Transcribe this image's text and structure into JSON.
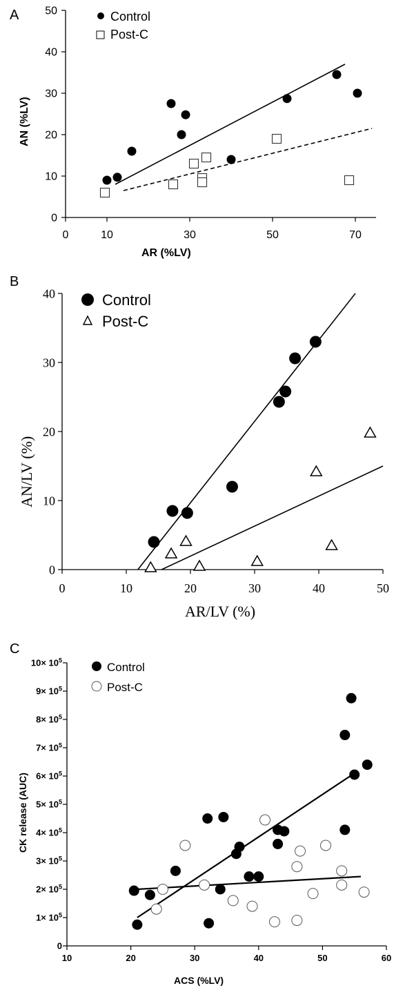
{
  "chart_data": [
    {
      "panel_label": "A",
      "type": "scatter",
      "title": "",
      "xlabel": "AR (%LV)",
      "ylabel": "AN (%LV)",
      "xlim": [
        0,
        75
      ],
      "ylim": [
        0,
        50
      ],
      "x_ticks": [
        "0",
        "10",
        "30",
        "50",
        "70"
      ],
      "y_ticks": [
        "0",
        "10",
        "20",
        "30",
        "40",
        "50"
      ],
      "legend_position": "top-left",
      "series": [
        {
          "name": "Control",
          "marker": "filled-circle",
          "points": [
            [
              10,
              9
            ],
            [
              12.5,
              9.7
            ],
            [
              16,
              16
            ],
            [
              25.5,
              27.5
            ],
            [
              28,
              20
            ],
            [
              29,
              24.8
            ],
            [
              40,
              14
            ],
            [
              53.5,
              28.7
            ],
            [
              65.5,
              34.5
            ],
            [
              70.5,
              30
            ]
          ],
          "fit_line": {
            "style": "solid",
            "from": [
              12,
              8
            ],
            "to": [
              67.5,
              37
            ]
          }
        },
        {
          "name": "Post-C",
          "marker": "open-square",
          "points": [
            [
              9.5,
              6
            ],
            [
              26,
              8
            ],
            [
              31,
              13
            ],
            [
              33,
              9.5
            ],
            [
              33,
              8.5
            ],
            [
              34,
              14.5
            ],
            [
              51,
              19
            ],
            [
              68.5,
              9
            ]
          ],
          "fit_line": {
            "style": "dashed",
            "from": [
              14,
              6.5
            ],
            "to": [
              74,
              21.5
            ]
          }
        }
      ]
    },
    {
      "panel_label": "B",
      "type": "scatter",
      "title": "",
      "xlabel": "AR/LV (%)",
      "ylabel": "AN/LV (%)",
      "xlim": [
        0,
        50
      ],
      "ylim": [
        0,
        40
      ],
      "x_ticks": [
        "0",
        "10",
        "20",
        "30",
        "40",
        "50"
      ],
      "y_ticks": [
        "0",
        "10",
        "20",
        "30",
        "40"
      ],
      "legend_position": "top-left",
      "series": [
        {
          "name": "Control",
          "marker": "filled-circle",
          "points": [
            [
              14.3,
              4
            ],
            [
              17.2,
              8.5
            ],
            [
              19.5,
              8.2
            ],
            [
              26.5,
              12
            ],
            [
              33.8,
              24.3
            ],
            [
              34.8,
              25.8
            ],
            [
              36.3,
              30.6
            ],
            [
              39.5,
              33
            ]
          ],
          "fit_line": {
            "style": "solid",
            "from": [
              11.8,
              0
            ],
            "to": [
              45.7,
              40
            ]
          }
        },
        {
          "name": "Post-C",
          "marker": "open-triangle",
          "points": [
            [
              13.8,
              0.3
            ],
            [
              17,
              2.3
            ],
            [
              19.3,
              4.1
            ],
            [
              21.4,
              0.5
            ],
            [
              30.4,
              1.2
            ],
            [
              39.6,
              14.2
            ],
            [
              42,
              3.5
            ],
            [
              48,
              19.8
            ]
          ],
          "fit_line": {
            "style": "solid",
            "from": [
              15.5,
              0
            ],
            "to": [
              50,
              15
            ]
          }
        }
      ]
    },
    {
      "panel_label": "C",
      "type": "scatter",
      "title": "",
      "xlabel": "ACS (%LV)",
      "ylabel": "CK release (AUC)",
      "xlim": [
        10,
        60
      ],
      "ylim": [
        0,
        1000000
      ],
      "x_ticks": [
        "10",
        "20",
        "30",
        "40",
        "50",
        "60"
      ],
      "y_ticks": [
        "0",
        "1× 10⁵",
        "2× 10⁵",
        "3× 10⁵",
        "4× 10⁵",
        "5× 10⁵",
        "6× 10⁵",
        "7× 10⁵",
        "8× 10⁵",
        "9× 10⁵",
        "10× 10⁵"
      ],
      "legend_position": "top-left",
      "series": [
        {
          "name": "Control",
          "marker": "filled-circle",
          "points": [
            [
              20.5,
              195000
            ],
            [
              21,
              75000
            ],
            [
              23,
              180000
            ],
            [
              27,
              265000
            ],
            [
              32,
              450000
            ],
            [
              32.2,
              80000
            ],
            [
              34,
              200000
            ],
            [
              34.5,
              455000
            ],
            [
              36.5,
              325000
            ],
            [
              37,
              350000
            ],
            [
              38.5,
              245000
            ],
            [
              40,
              245000
            ],
            [
              43,
              410000
            ],
            [
              43,
              360000
            ],
            [
              44,
              405000
            ],
            [
              53.5,
              745000
            ],
            [
              53.5,
              410000
            ],
            [
              54.5,
              875000
            ],
            [
              55,
              605000
            ],
            [
              57,
              640000
            ]
          ],
          "fit_line": {
            "style": "solid",
            "from": [
              21,
              100000
            ],
            "to": [
              55,
              610000
            ]
          }
        },
        {
          "name": "Post-C",
          "marker": "open-circle",
          "points": [
            [
              24,
              130000
            ],
            [
              25,
              200000
            ],
            [
              28.5,
              355000
            ],
            [
              31.5,
              215000
            ],
            [
              36,
              160000
            ],
            [
              39,
              140000
            ],
            [
              41,
              445000
            ],
            [
              42.5,
              85000
            ],
            [
              46,
              90000
            ],
            [
              46,
              280000
            ],
            [
              46.5,
              335000
            ],
            [
              48.5,
              185000
            ],
            [
              50.5,
              355000
            ],
            [
              53,
              265000
            ],
            [
              53,
              215000
            ],
            [
              56.5,
              190000
            ]
          ],
          "fit_line": {
            "style": "solid",
            "from": [
              21,
              200000
            ],
            "to": [
              56,
              245000
            ]
          }
        }
      ]
    }
  ]
}
